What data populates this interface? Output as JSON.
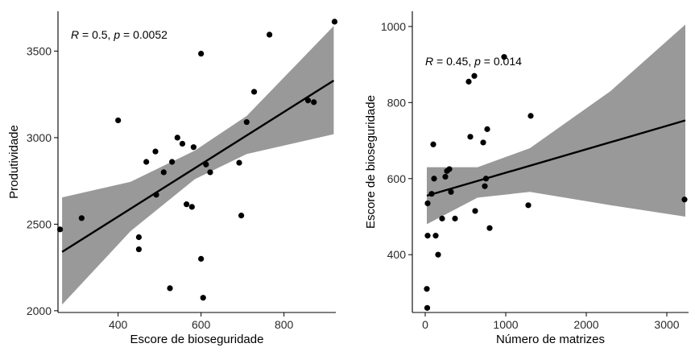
{
  "chart_data": [
    {
      "type": "scatter",
      "xlabel": "Escore de bioseguridade",
      "ylabel": "Produtividade",
      "xlim": [
        255,
        925
      ],
      "ylim": [
        1990,
        3730
      ],
      "x_ticks": [
        400,
        600,
        800
      ],
      "y_ticks": [
        2000,
        2500,
        3000,
        3500
      ],
      "grid": false,
      "annotation": {
        "r_label": "R",
        "r_text": " = 0.5, ",
        "p_label": "p",
        "p_text": " = 0.0052"
      },
      "points": [
        [
          260,
          2470
        ],
        [
          312,
          2535
        ],
        [
          400,
          3100
        ],
        [
          450,
          2425
        ],
        [
          450,
          2355
        ],
        [
          468,
          2860
        ],
        [
          490,
          2920
        ],
        [
          492,
          2670
        ],
        [
          510,
          2800
        ],
        [
          525,
          2130
        ],
        [
          530,
          2860
        ],
        [
          543,
          3000
        ],
        [
          555,
          2965
        ],
        [
          565,
          2615
        ],
        [
          578,
          2600
        ],
        [
          582,
          2945
        ],
        [
          600,
          3485
        ],
        [
          600,
          2300
        ],
        [
          605,
          2075
        ],
        [
          612,
          2845
        ],
        [
          622,
          2800
        ],
        [
          692,
          2855
        ],
        [
          697,
          2550
        ],
        [
          710,
          3090
        ],
        [
          728,
          3265
        ],
        [
          765,
          3595
        ],
        [
          858,
          3215
        ],
        [
          872,
          3205
        ],
        [
          922,
          3670
        ]
      ],
      "regression": {
        "x": [
          265,
          920
        ],
        "y": [
          2340,
          3330
        ]
      },
      "confidence_band": {
        "x": [
          265,
          430,
          585,
          710,
          920
        ],
        "lower": [
          2035,
          2460,
          2760,
          2905,
          3020
        ],
        "upper": [
          2655,
          2745,
          2925,
          3125,
          3645
        ]
      },
      "colors": {
        "points": "#000000",
        "line": "#000000",
        "band": "#999999"
      }
    },
    {
      "type": "scatter",
      "xlabel": "Número de matrizes",
      "ylabel": "Escore de bioseguridade",
      "xlim": [
        -160,
        3270
      ],
      "ylim": [
        248,
        1040
      ],
      "x_ticks": [
        0,
        1000,
        2000,
        3000
      ],
      "y_ticks": [
        400,
        600,
        800,
        1000
      ],
      "grid": false,
      "annotation": {
        "r_label": "R",
        "r_text": " = 0.45, ",
        "p_label": "p",
        "p_text": " = 0.014"
      },
      "points": [
        [
          20,
          310
        ],
        [
          25,
          260
        ],
        [
          30,
          450
        ],
        [
          30,
          535
        ],
        [
          80,
          560
        ],
        [
          100,
          690
        ],
        [
          110,
          600
        ],
        [
          130,
          450
        ],
        [
          160,
          400
        ],
        [
          210,
          495
        ],
        [
          250,
          605
        ],
        [
          270,
          620
        ],
        [
          300,
          625
        ],
        [
          320,
          565
        ],
        [
          370,
          495
        ],
        [
          540,
          855
        ],
        [
          560,
          710
        ],
        [
          610,
          870
        ],
        [
          620,
          515
        ],
        [
          720,
          695
        ],
        [
          740,
          580
        ],
        [
          755,
          600
        ],
        [
          770,
          730
        ],
        [
          800,
          470
        ],
        [
          980,
          920
        ],
        [
          1280,
          530
        ],
        [
          1310,
          765
        ],
        [
          3220,
          545
        ]
      ],
      "regression": {
        "x": [
          20,
          3230
        ],
        "y": [
          555,
          753
        ]
      },
      "confidence_band": {
        "x": [
          20,
          650,
          1300,
          2300,
          3230
        ],
        "lower": [
          480,
          550,
          565,
          530,
          500
        ],
        "upper": [
          630,
          630,
          680,
          830,
          1005
        ]
      },
      "colors": {
        "points": "#000000",
        "line": "#000000",
        "band": "#999999"
      }
    }
  ]
}
